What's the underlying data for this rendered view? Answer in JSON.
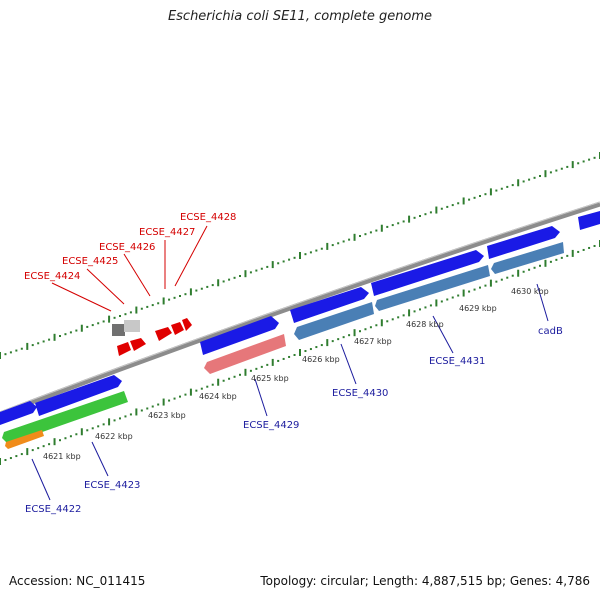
{
  "title": "Escherichia coli SE11, complete genome",
  "footer": {
    "accession": "Accession: NC_011415",
    "summary": "Topology: circular; Length: 4,887,515 bp; Genes: 4,786"
  },
  "colors": {
    "backbone": "#8c8c8c",
    "dots": "#2f7d2f",
    "forward_gene": "#1a1ae6",
    "reverse_gene": "#4a7fb5",
    "highlight_gene": "#e6777a",
    "green_gene": "#3cc43c",
    "orange_gene": "#f08c1a",
    "red_label": "#d40000",
    "blue_label": "#1c1c9e",
    "red_gene": "#e00000",
    "gray_gene": "#808080"
  },
  "tick_labels": [
    "4621 kbp",
    "4622 kbp",
    "4623 kbp",
    "4624 kbp",
    "4625 kbp",
    "4626 kbp",
    "4627 kbp",
    "4628 kbp",
    "4629 kbp",
    "4630 kbp"
  ],
  "labels_top": [
    "ECSE_4424",
    "ECSE_4425",
    "ECSE_4426",
    "ECSE_4427",
    "ECSE_4428"
  ],
  "labels_bottom": [
    "ECSE_4422",
    "ECSE_4423",
    "ECSE_4429",
    "ECSE_4430",
    "ECSE_4431",
    "cadB"
  ]
}
